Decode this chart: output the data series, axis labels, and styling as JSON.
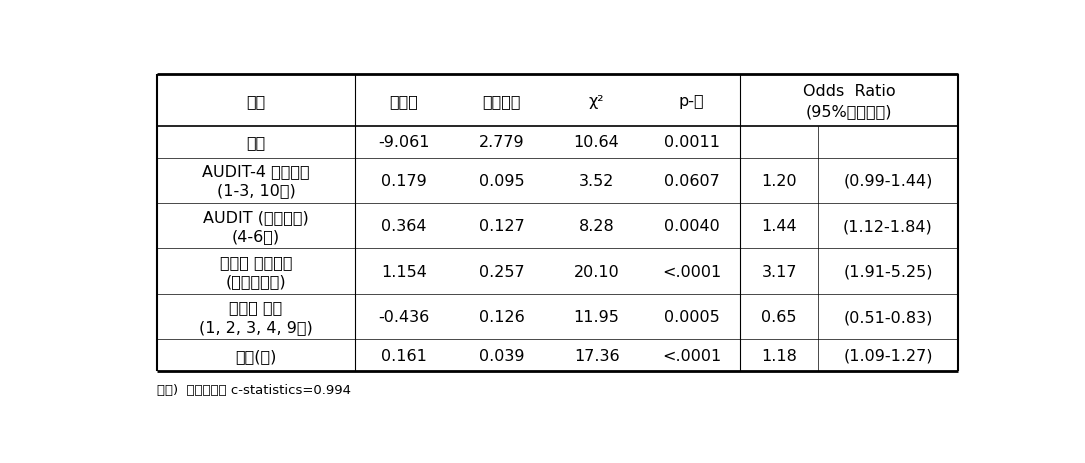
{
  "footnote": "주업)  모형적합도 c-statistics=0.994",
  "rows": [
    {
      "var": "상수",
      "est": "-9.061",
      "se": "2.779",
      "chi2": "10.64",
      "p": "0.0011",
      "or": "",
      "ci": ""
    },
    {
      "var": "AUDIT-4 간편도구\n(1-3, 10번)",
      "est": "0.179",
      "se": "0.095",
      "chi2": "3.52",
      "p": "0.0607",
      "or": "1.20",
      "ci": "(0.99-1.44)"
    },
    {
      "var": "AUDIT (의존증상)\n(4-6번)",
      "est": "0.364",
      "se": "0.127",
      "chi2": "8.28",
      "p": "0.0040",
      "or": "1.44",
      "ci": "(1.12-1.84)"
    },
    {
      "var": "알콜올 의존철도\n(강박적음주)",
      "est": "1.154",
      "se": "0.257",
      "chi2": "20.10",
      "p": "<.0001",
      "or": "3.17",
      "ci": "(1.91-5.25)"
    },
    {
      "var": "자존감 일부\n(1, 2, 3, 4, 9번)",
      "est": "-0.436",
      "se": "0.126",
      "chi2": "11.95",
      "p": "0.0005",
      "or": "0.65",
      "ci": "(0.51-0.83)"
    },
    {
      "var": "연령(세)",
      "est": "0.161",
      "se": "0.039",
      "chi2": "17.36",
      "p": "<.0001",
      "or": "1.18",
      "ci": "(1.09-1.27)"
    }
  ],
  "bg_color": "#ffffff",
  "text_color": "#000000",
  "font_size": 11.5,
  "header_font_size": 11.5
}
